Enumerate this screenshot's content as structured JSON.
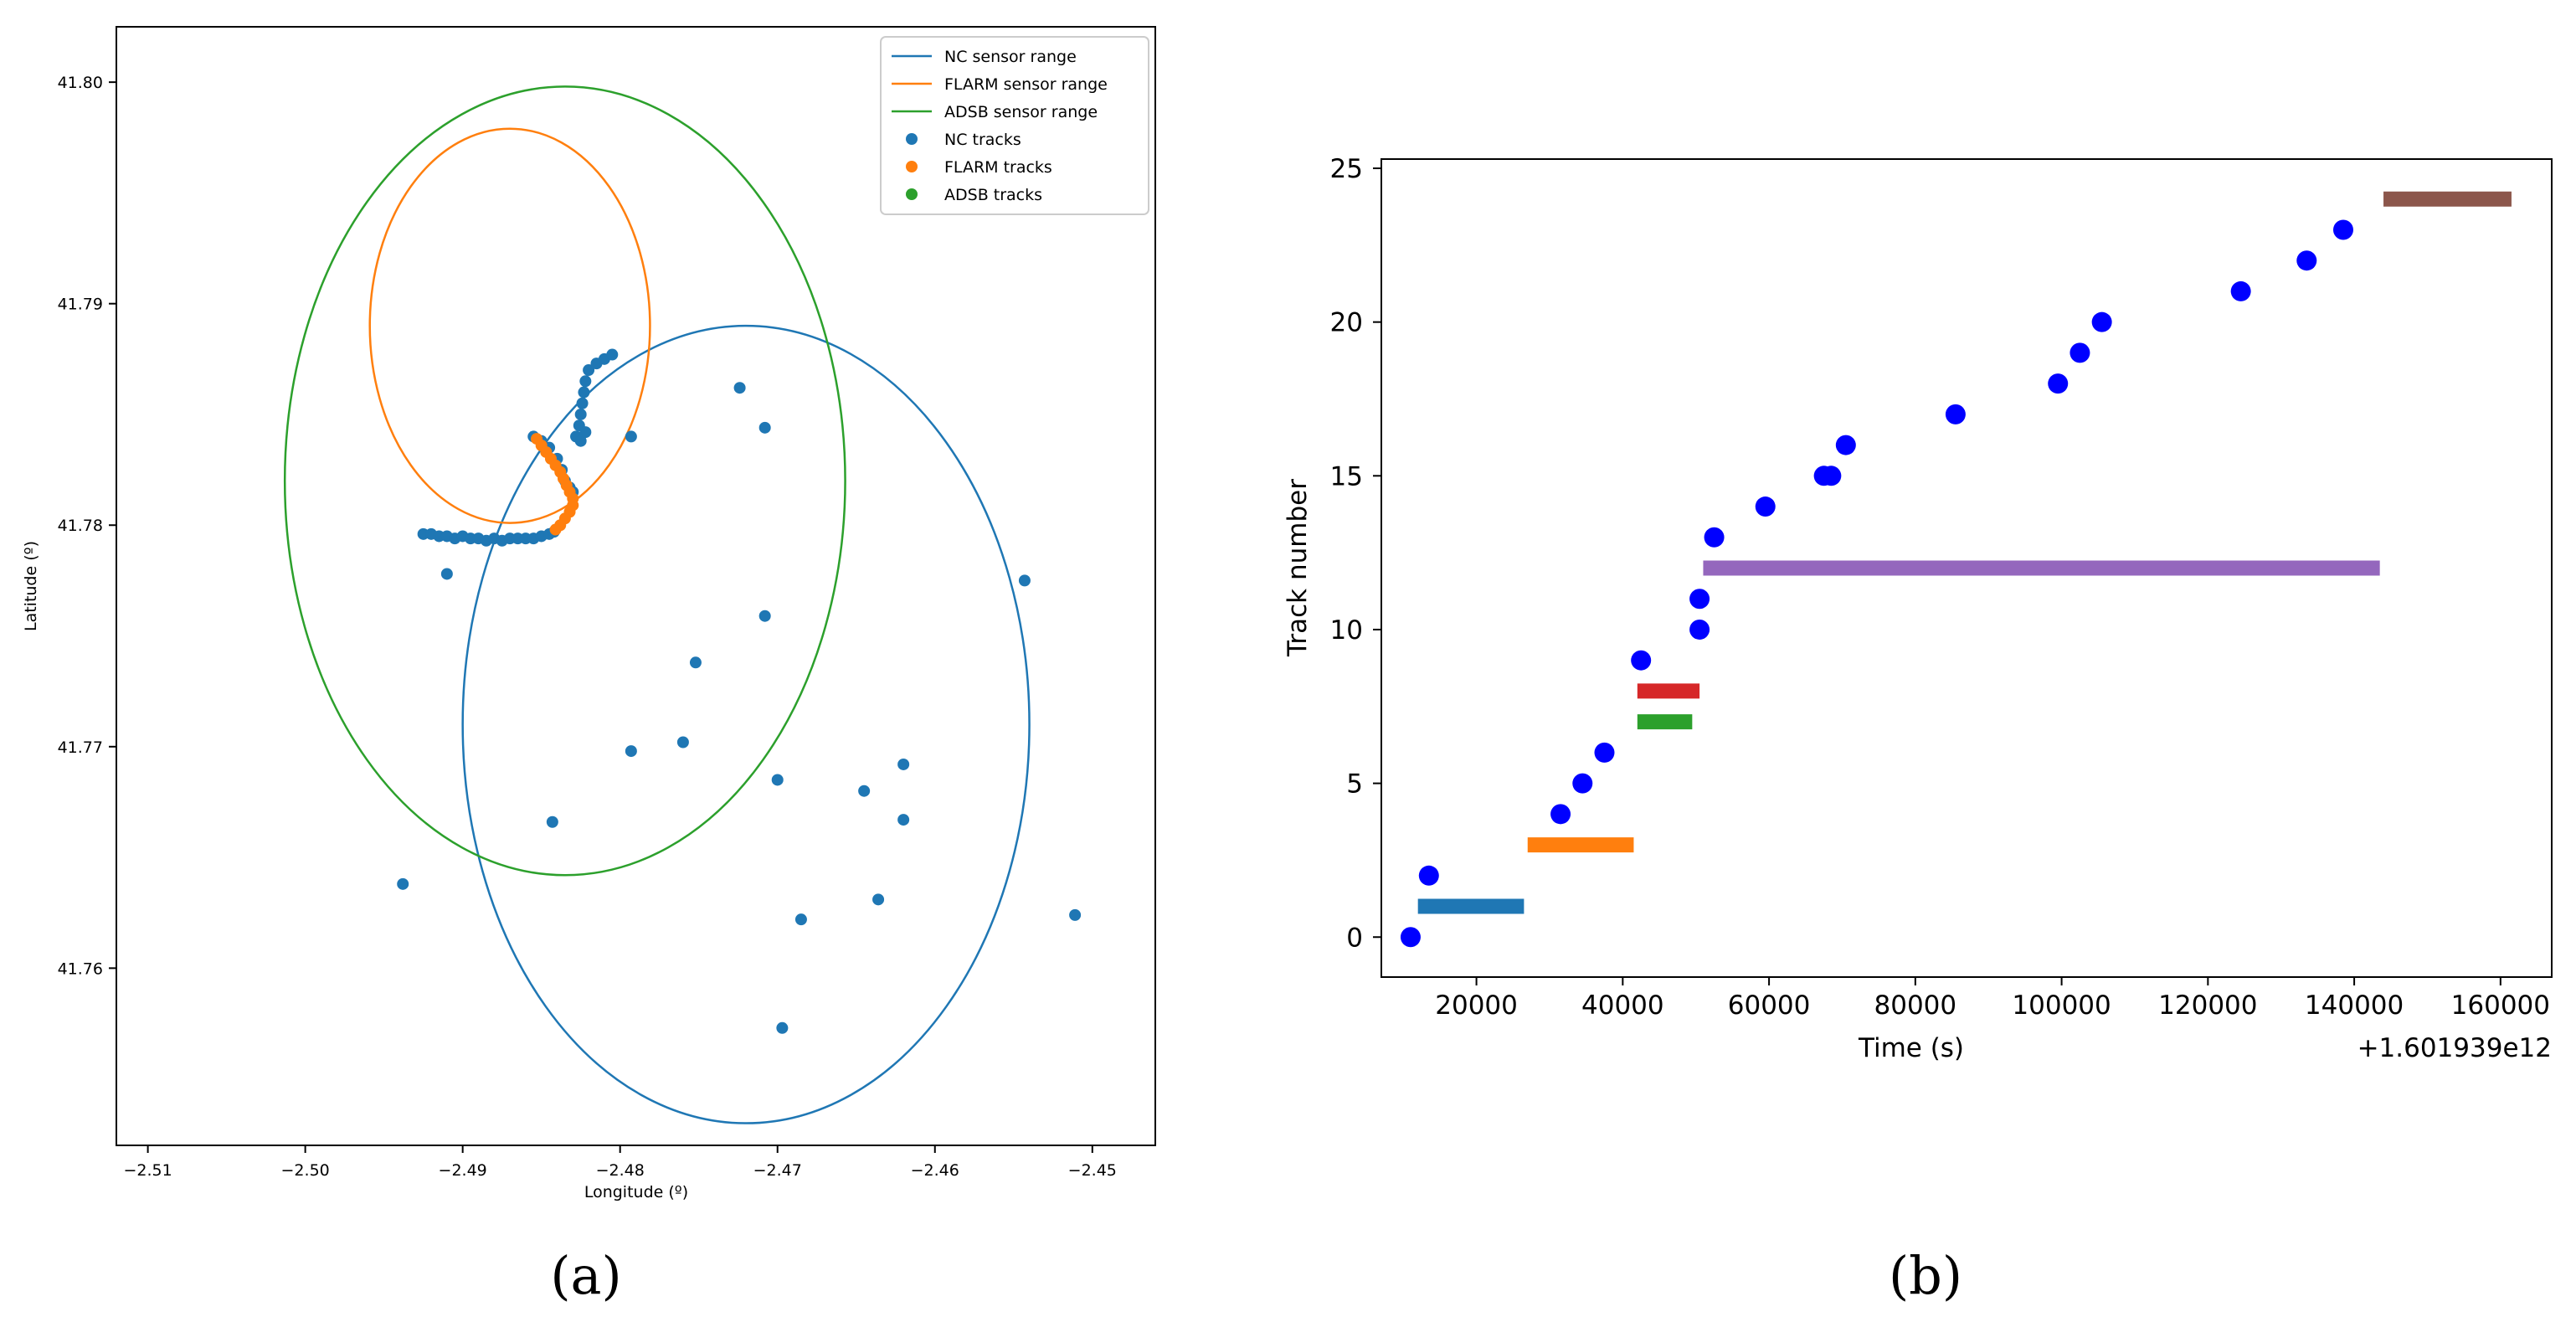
{
  "chart_data": [
    {
      "panel": "(a)",
      "type": "scatter",
      "xlabel": "Longitude (º)",
      "ylabel": "Latitude (º)",
      "xlim": [
        -2.512,
        -2.446
      ],
      "ylim": [
        41.752,
        41.8025
      ],
      "xticks": [
        -2.51,
        -2.5,
        -2.49,
        -2.48,
        -2.47,
        -2.46,
        -2.45
      ],
      "xtick_labels": [
        "−2.51",
        "−2.50",
        "−2.49",
        "−2.48",
        "−2.47",
        "−2.46",
        "−2.45"
      ],
      "yticks": [
        41.76,
        41.77,
        41.78,
        41.79,
        41.8
      ],
      "ytick_labels": [
        "41.76",
        "41.77",
        "41.78",
        "41.79",
        "41.80"
      ],
      "legend_position": "top-right",
      "legend": [
        {
          "label": "NC sensor range",
          "kind": "line",
          "color": "#1f77b4"
        },
        {
          "label": "FLARM sensor range",
          "kind": "line",
          "color": "#ff7f0e"
        },
        {
          "label": "ADSB sensor range",
          "kind": "line",
          "color": "#2ca02c"
        },
        {
          "label": "NC tracks",
          "kind": "marker",
          "color": "#1f77b4"
        },
        {
          "label": "FLARM tracks",
          "kind": "marker",
          "color": "#ff7f0e"
        },
        {
          "label": "ADSB tracks",
          "kind": "marker",
          "color": "#2ca02c"
        }
      ],
      "ranges": [
        {
          "name": "NC sensor range",
          "center": [
            -2.472,
            41.771
          ],
          "radius_deg": 0.018,
          "color": "#1f77b4"
        },
        {
          "name": "FLARM sensor range",
          "center": [
            -2.487,
            41.789
          ],
          "radius_deg": 0.0089,
          "color": "#ff7f0e"
        },
        {
          "name": "ADSB sensor range",
          "center": [
            -2.4835,
            41.782
          ],
          "radius_deg": 0.0178,
          "color": "#2ca02c"
        }
      ],
      "series": [
        {
          "name": "NC tracks",
          "color": "#1f77b4",
          "points": [
            [
              -2.4925,
              41.7796
            ],
            [
              -2.492,
              41.7796
            ],
            [
              -2.4915,
              41.7795
            ],
            [
              -2.491,
              41.7795
            ],
            [
              -2.4905,
              41.7794
            ],
            [
              -2.49,
              41.7795
            ],
            [
              -2.4895,
              41.7794
            ],
            [
              -2.489,
              41.7794
            ],
            [
              -2.4885,
              41.7793
            ],
            [
              -2.488,
              41.7794
            ],
            [
              -2.4875,
              41.7793
            ],
            [
              -2.487,
              41.7794
            ],
            [
              -2.4865,
              41.7794
            ],
            [
              -2.486,
              41.7794
            ],
            [
              -2.4855,
              41.7794
            ],
            [
              -2.485,
              41.7795
            ],
            [
              -2.4845,
              41.7796
            ],
            [
              -2.4842,
              41.7797
            ],
            [
              -2.4855,
              41.784
            ],
            [
              -2.485,
              41.7838
            ],
            [
              -2.4845,
              41.7835
            ],
            [
              -2.484,
              41.783
            ],
            [
              -2.4837,
              41.7825
            ],
            [
              -2.4835,
              41.782
            ],
            [
              -2.4832,
              41.7817
            ],
            [
              -2.483,
              41.7815
            ],
            [
              -2.4828,
              41.784
            ],
            [
              -2.4826,
              41.7845
            ],
            [
              -2.4825,
              41.785
            ],
            [
              -2.4824,
              41.7855
            ],
            [
              -2.4823,
              41.786
            ],
            [
              -2.4822,
              41.7865
            ],
            [
              -2.482,
              41.787
            ],
            [
              -2.4815,
              41.7873
            ],
            [
              -2.481,
              41.7875
            ],
            [
              -2.4805,
              41.7877
            ],
            [
              -2.4825,
              41.7838
            ],
            [
              -2.4822,
              41.7842
            ],
            [
              -2.491,
              41.7778
            ],
            [
              -2.4793,
              41.784
            ],
            [
              -2.4724,
              41.7862
            ],
            [
              -2.4708,
              41.7844
            ],
            [
              -2.4543,
              41.7775
            ],
            [
              -2.4708,
              41.7759
            ],
            [
              -2.4752,
              41.7738
            ],
            [
              -2.476,
              41.7702
            ],
            [
              -2.4793,
              41.7698
            ],
            [
              -2.47,
              41.7685
            ],
            [
              -2.4645,
              41.768
            ],
            [
              -2.462,
              41.7692
            ],
            [
              -2.462,
              41.7667
            ],
            [
              -2.4843,
              41.7666
            ],
            [
              -2.4938,
              41.7638
            ],
            [
              -2.4636,
              41.7631
            ],
            [
              -2.4685,
              41.7622
            ],
            [
              -2.4511,
              41.7624
            ],
            [
              -2.4697,
              41.7573
            ]
          ]
        },
        {
          "name": "FLARM tracks",
          "color": "#ff7f0e",
          "points": [
            [
              -2.4853,
              41.7839
            ],
            [
              -2.485,
              41.7836
            ],
            [
              -2.4847,
              41.7833
            ],
            [
              -2.4844,
              41.783
            ],
            [
              -2.4841,
              41.7827
            ],
            [
              -2.4838,
              41.7824
            ],
            [
              -2.4836,
              41.7821
            ],
            [
              -2.4834,
              41.7818
            ],
            [
              -2.4832,
              41.7815
            ],
            [
              -2.483,
              41.7812
            ],
            [
              -2.483,
              41.7809
            ],
            [
              -2.4832,
              41.7806
            ],
            [
              -2.4835,
              41.7803
            ],
            [
              -2.4838,
              41.78
            ],
            [
              -2.4841,
              41.7798
            ]
          ]
        },
        {
          "name": "ADSB tracks",
          "color": "#2ca02c",
          "points": []
        }
      ]
    },
    {
      "panel": "(b)",
      "type": "scatter",
      "xlabel": "Time (s)",
      "ylabel": "Track number",
      "offset_label": "+1.601939e12",
      "xlim": [
        7000,
        167000
      ],
      "ylim": [
        -1.3,
        25.3
      ],
      "xticks": [
        20000,
        40000,
        60000,
        80000,
        100000,
        120000,
        140000,
        160000
      ],
      "xtick_labels": [
        "20000",
        "40000",
        "60000",
        "80000",
        "100000",
        "120000",
        "140000",
        "160000"
      ],
      "yticks": [
        0,
        5,
        10,
        15,
        20,
        25
      ],
      "ytick_labels": [
        "0",
        "5",
        "10",
        "15",
        "20",
        "25"
      ],
      "points_color": "#0000ff",
      "points": [
        [
          11000,
          0
        ],
        [
          13500,
          2
        ],
        [
          31500,
          4
        ],
        [
          34500,
          5
        ],
        [
          37500,
          6
        ],
        [
          42500,
          9
        ],
        [
          50500,
          10
        ],
        [
          50500,
          11
        ],
        [
          52500,
          13
        ],
        [
          59500,
          14
        ],
        [
          67500,
          15
        ],
        [
          68500,
          15
        ],
        [
          70500,
          16
        ],
        [
          85500,
          17
        ],
        [
          99500,
          18
        ],
        [
          102500,
          19
        ],
        [
          105500,
          20
        ],
        [
          124500,
          21
        ],
        [
          133500,
          22
        ],
        [
          138500,
          23
        ]
      ],
      "segments": [
        {
          "track": 1,
          "start": 12000,
          "end": 26500,
          "color": "#1f77b4"
        },
        {
          "track": 3,
          "start": 27000,
          "end": 41500,
          "color": "#ff7f0e"
        },
        {
          "track": 7,
          "start": 42000,
          "end": 49500,
          "color": "#2ca02c"
        },
        {
          "track": 8,
          "start": 42000,
          "end": 50500,
          "color": "#d62728"
        },
        {
          "track": 12,
          "start": 51000,
          "end": 143500,
          "color": "#9467bd"
        },
        {
          "track": 24,
          "start": 144000,
          "end": 161500,
          "color": "#8c564b"
        }
      ]
    }
  ],
  "captions": {
    "a": "(a)",
    "b": "(b)"
  }
}
